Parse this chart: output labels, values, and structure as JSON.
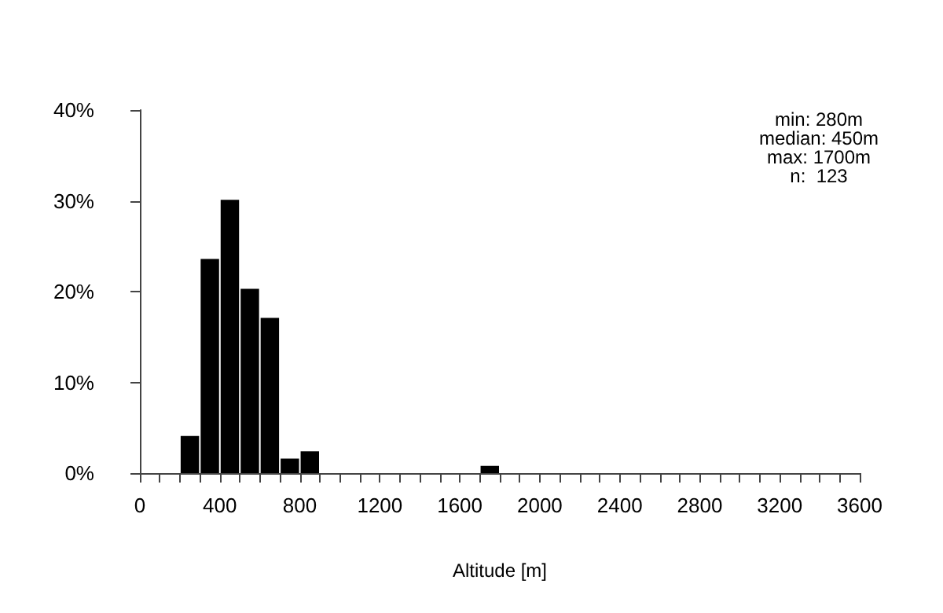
{
  "chart_data": {
    "type": "histogram",
    "xlabel": "Altitude [m]",
    "bins": [
      200,
      300,
      400,
      500,
      600,
      700,
      800,
      900,
      1000,
      1100,
      1200,
      1300,
      1400,
      1500,
      1600,
      1700,
      1800
    ],
    "values": [
      4.1,
      23.6,
      30.1,
      20.3,
      17.1,
      1.6,
      2.4,
      0,
      0,
      0,
      0,
      0,
      0,
      0,
      0,
      0.8
    ],
    "color": "#000000",
    "xlim": [
      0,
      3600
    ],
    "xticks": [
      0,
      {
        "value": 100,
        "label": null
      },
      {
        "value": 200,
        "label": null
      },
      {
        "value": 300,
        "label": null
      },
      400,
      {
        "value": 500,
        "label": null
      },
      {
        "value": 600,
        "label": null
      },
      {
        "value": 700,
        "label": null
      },
      800,
      {
        "value": 900,
        "label": null
      },
      {
        "value": 1000,
        "label": null
      },
      {
        "value": 1100,
        "label": null
      },
      1200,
      {
        "value": 1300,
        "label": null
      },
      {
        "value": 1400,
        "label": null
      },
      {
        "value": 1500,
        "label": null
      },
      1600,
      {
        "value": 1700,
        "label": null
      },
      {
        "value": 1800,
        "label": null
      },
      {
        "value": 1900,
        "label": null
      },
      2000,
      {
        "value": 2100,
        "label": null
      },
      {
        "value": 2200,
        "label": null
      },
      {
        "value": 2300,
        "label": null
      },
      2400,
      {
        "value": 2500,
        "label": null
      },
      {
        "value": 2600,
        "label": null
      },
      {
        "value": 2700,
        "label": null
      },
      2800,
      {
        "value": 2900,
        "label": null
      },
      {
        "value": 3000,
        "label": null
      },
      {
        "value": 3100,
        "label": null
      },
      3200,
      {
        "value": 3300,
        "label": null
      },
      {
        "value": 3400,
        "label": null
      },
      {
        "value": 3500,
        "label": null
      },
      3600
    ],
    "ylim": [
      0,
      40
    ],
    "yticks": [
      {
        "value": 0,
        "label": "0%"
      },
      {
        "value": 10,
        "label": "10%"
      },
      {
        "value": 20,
        "label": "20%"
      },
      {
        "value": 30,
        "label": "30%"
      },
      {
        "value": 40,
        "label": "40%"
      }
    ],
    "grid": false,
    "annotations": [
      "min: 280m",
      "median: 450m",
      "max: 1700m",
      "n:  123"
    ]
  }
}
